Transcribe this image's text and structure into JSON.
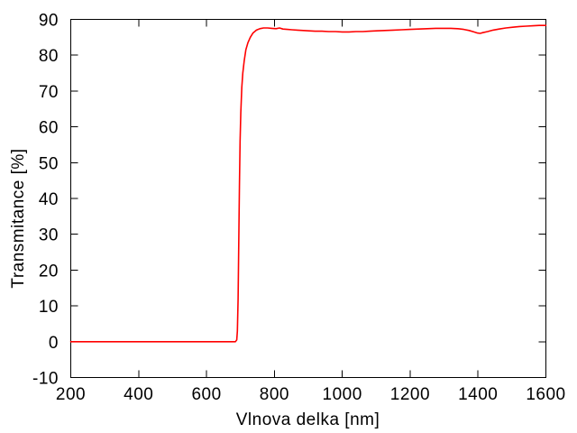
{
  "chart_data": {
    "type": "line",
    "title": "",
    "xlabel": "Vlnova delka [nm]",
    "ylabel": "Transmitance [%]",
    "xlim": [
      200,
      1600
    ],
    "ylim": [
      -10,
      90
    ],
    "xticks": [
      200,
      400,
      600,
      800,
      1000,
      1200,
      1400,
      1600
    ],
    "yticks": [
      -10,
      0,
      10,
      20,
      30,
      40,
      50,
      60,
      70,
      80,
      90
    ],
    "grid": false,
    "legend_position": "none",
    "background_color": "#ffffff",
    "axis_color": "#000000",
    "line_color": "#ff0000",
    "tick_length": 8,
    "tick_style": "inward-mirrored",
    "series": [
      {
        "name": "transmittance",
        "points": [
          [
            200,
            0
          ],
          [
            250,
            0
          ],
          [
            300,
            0
          ],
          [
            350,
            0
          ],
          [
            400,
            0
          ],
          [
            450,
            0
          ],
          [
            500,
            0
          ],
          [
            550,
            0
          ],
          [
            600,
            0
          ],
          [
            640,
            0
          ],
          [
            670,
            0
          ],
          [
            685,
            0
          ],
          [
            689,
            0.5
          ],
          [
            691,
            3
          ],
          [
            693,
            12
          ],
          [
            695,
            27
          ],
          [
            697,
            44
          ],
          [
            699,
            56
          ],
          [
            701,
            64
          ],
          [
            704,
            71
          ],
          [
            707,
            75
          ],
          [
            711,
            78.5
          ],
          [
            716,
            81.5
          ],
          [
            722,
            83.5
          ],
          [
            729,
            85
          ],
          [
            737,
            86.2
          ],
          [
            747,
            87
          ],
          [
            757,
            87.4
          ],
          [
            768,
            87.6
          ],
          [
            780,
            87.6
          ],
          [
            792,
            87.5
          ],
          [
            805,
            87.4
          ],
          [
            815,
            87.6
          ],
          [
            825,
            87.3
          ],
          [
            838,
            87.2
          ],
          [
            852,
            87.1
          ],
          [
            868,
            87
          ],
          [
            885,
            86.9
          ],
          [
            902,
            86.8
          ],
          [
            920,
            86.7
          ],
          [
            940,
            86.7
          ],
          [
            960,
            86.6
          ],
          [
            980,
            86.6
          ],
          [
            1000,
            86.5
          ],
          [
            1020,
            86.5
          ],
          [
            1040,
            86.6
          ],
          [
            1060,
            86.6
          ],
          [
            1080,
            86.7
          ],
          [
            1100,
            86.8
          ],
          [
            1125,
            86.9
          ],
          [
            1150,
            87
          ],
          [
            1175,
            87.1
          ],
          [
            1200,
            87.2
          ],
          [
            1225,
            87.3
          ],
          [
            1250,
            87.4
          ],
          [
            1275,
            87.5
          ],
          [
            1300,
            87.5
          ],
          [
            1320,
            87.5
          ],
          [
            1340,
            87.4
          ],
          [
            1358,
            87.2
          ],
          [
            1374,
            86.9
          ],
          [
            1388,
            86.5
          ],
          [
            1398,
            86.2
          ],
          [
            1406,
            86.1
          ],
          [
            1414,
            86.3
          ],
          [
            1428,
            86.6
          ],
          [
            1444,
            87
          ],
          [
            1462,
            87.3
          ],
          [
            1482,
            87.6
          ],
          [
            1502,
            87.8
          ],
          [
            1522,
            88
          ],
          [
            1542,
            88.1
          ],
          [
            1562,
            88.2
          ],
          [
            1580,
            88.3
          ],
          [
            1600,
            88.3
          ]
        ]
      }
    ]
  }
}
